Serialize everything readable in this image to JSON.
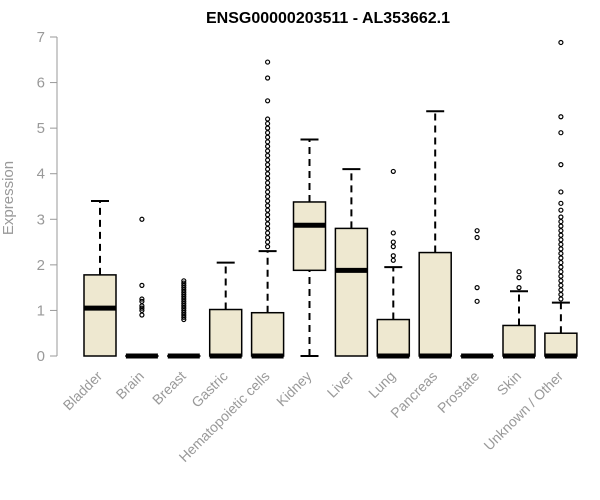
{
  "chart_data": {
    "type": "boxplot",
    "title": "ENSG00000203511 - AL353662.1",
    "ylabel": "Expression",
    "ylim": [
      0,
      7
    ],
    "yticks": [
      0,
      1,
      2,
      3,
      4,
      5,
      6,
      7
    ],
    "grid": false,
    "box_color": "#EEE8D0",
    "categories": [
      "Bladder",
      "Brain",
      "Breast",
      "Gastric",
      "Hematopoietic cells",
      "Kidney",
      "Liver",
      "Lung",
      "Pancreas",
      "Prostate",
      "Skin",
      "Unknown / Other"
    ],
    "boxes": [
      {
        "min": 0,
        "q1": 0,
        "median": 1.05,
        "q3": 1.78,
        "max": 3.4,
        "outliers": []
      },
      {
        "min": 0,
        "q1": 0,
        "median": 0,
        "q3": 0,
        "max": 0,
        "outliers": [
          0.9,
          1.0,
          1.05,
          1.1,
          1.2,
          1.25,
          1.55,
          3.0
        ]
      },
      {
        "min": 0,
        "q1": 0,
        "median": 0,
        "q3": 0,
        "max": 0,
        "outliers": [
          0.8,
          0.85,
          0.9,
          0.95,
          1.0,
          1.05,
          1.1,
          1.15,
          1.2,
          1.25,
          1.3,
          1.35,
          1.4,
          1.45,
          1.5,
          1.55,
          1.6,
          1.65
        ]
      },
      {
        "min": 0,
        "q1": 0,
        "median": 0,
        "q3": 1.02,
        "max": 2.05,
        "outliers": []
      },
      {
        "min": 0,
        "q1": 0,
        "median": 0,
        "q3": 0.95,
        "max": 2.3,
        "outliers": [
          2.4,
          2.5,
          2.6,
          2.7,
          2.8,
          2.9,
          3.0,
          3.1,
          3.2,
          3.3,
          3.4,
          3.5,
          3.6,
          3.7,
          3.8,
          3.9,
          4.0,
          4.1,
          4.2,
          4.3,
          4.4,
          4.5,
          4.6,
          4.7,
          4.8,
          4.9,
          5.0,
          5.1,
          5.2,
          5.6,
          6.1,
          6.45
        ]
      },
      {
        "min": 0,
        "q1": 1.88,
        "median": 2.87,
        "q3": 3.38,
        "max": 4.75,
        "outliers": []
      },
      {
        "min": 0,
        "q1": 0,
        "median": 1.88,
        "q3": 2.8,
        "max": 4.1,
        "outliers": []
      },
      {
        "min": 0,
        "q1": 0,
        "median": 0,
        "q3": 0.8,
        "max": 1.95,
        "outliers": [
          2.1,
          2.2,
          2.4,
          2.5,
          2.7,
          4.05
        ]
      },
      {
        "min": 0,
        "q1": 0,
        "median": 0,
        "q3": 2.27,
        "max": 5.37,
        "outliers": []
      },
      {
        "min": 0,
        "q1": 0,
        "median": 0,
        "q3": 0,
        "max": 0,
        "outliers": [
          1.2,
          1.5,
          2.6,
          2.75
        ]
      },
      {
        "min": 0,
        "q1": 0,
        "median": 0,
        "q3": 0.67,
        "max": 1.42,
        "outliers": [
          1.5,
          1.72,
          1.85
        ]
      },
      {
        "min": 0,
        "q1": 0,
        "median": 0,
        "q3": 0.5,
        "max": 1.17,
        "outliers": [
          1.25,
          1.35,
          1.45,
          1.55,
          1.65,
          1.75,
          1.85,
          1.95,
          2.05,
          2.15,
          2.25,
          2.35,
          2.45,
          2.55,
          2.65,
          2.75,
          2.85,
          2.95,
          3.05,
          3.2,
          3.35,
          3.6,
          4.2,
          4.9,
          5.25,
          6.88
        ]
      }
    ]
  }
}
